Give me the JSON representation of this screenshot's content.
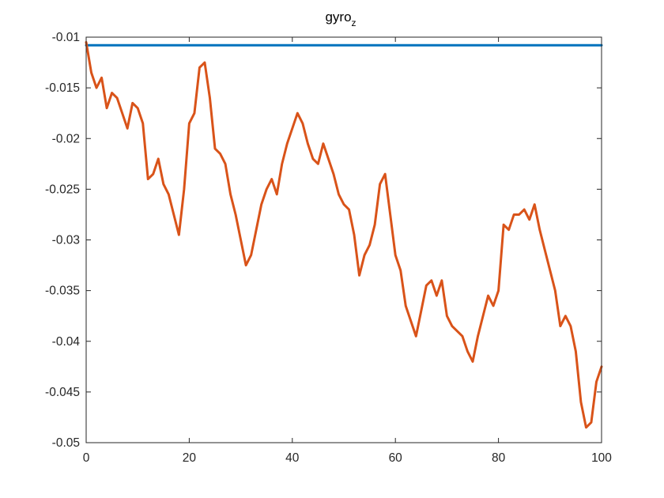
{
  "chart_data": {
    "type": "line",
    "title": "gyro",
    "title_subscript": "z",
    "xlabel": "",
    "ylabel": "",
    "xlim": [
      0,
      100
    ],
    "ylim": [
      -0.05,
      -0.01
    ],
    "xticks": [
      0,
      20,
      40,
      60,
      80,
      100
    ],
    "xtick_labels": [
      "0",
      "20",
      "40",
      "60",
      "80",
      "100"
    ],
    "yticks": [
      -0.05,
      -0.045,
      -0.04,
      -0.035,
      -0.03,
      -0.025,
      -0.02,
      -0.015,
      -0.01
    ],
    "ytick_labels": [
      "-0.05",
      "-0.045",
      "-0.04",
      "-0.035",
      "-0.03",
      "-0.025",
      "-0.02",
      "-0.015",
      "-0.01"
    ],
    "grid": false,
    "legend": "none",
    "series": [
      {
        "color": "#0072BD",
        "x": [
          0,
          100
        ],
        "y": [
          -0.0108,
          -0.0108
        ]
      },
      {
        "color": "#D95319",
        "x": [
          0,
          1,
          2,
          3,
          4,
          5,
          6,
          7,
          8,
          9,
          10,
          11,
          12,
          13,
          14,
          15,
          16,
          17,
          18,
          19,
          20,
          21,
          22,
          23,
          24,
          25,
          26,
          27,
          28,
          29,
          30,
          31,
          32,
          33,
          34,
          35,
          36,
          37,
          38,
          39,
          40,
          41,
          42,
          43,
          44,
          45,
          46,
          47,
          48,
          49,
          50,
          51,
          52,
          53,
          54,
          55,
          56,
          57,
          58,
          59,
          60,
          61,
          62,
          63,
          64,
          65,
          66,
          67,
          68,
          69,
          70,
          71,
          72,
          73,
          74,
          75,
          76,
          77,
          78,
          79,
          80,
          81,
          82,
          83,
          84,
          85,
          86,
          87,
          88,
          89,
          90,
          91,
          92,
          93,
          94,
          95,
          96,
          97,
          98,
          99,
          100
        ],
        "y": [
          -0.0105,
          -0.0135,
          -0.015,
          -0.014,
          -0.017,
          -0.0155,
          -0.016,
          -0.0175,
          -0.019,
          -0.0165,
          -0.017,
          -0.0185,
          -0.024,
          -0.0235,
          -0.022,
          -0.0245,
          -0.0255,
          -0.0275,
          -0.0295,
          -0.025,
          -0.0185,
          -0.0175,
          -0.013,
          -0.0125,
          -0.016,
          -0.021,
          -0.0215,
          -0.0225,
          -0.0255,
          -0.0275,
          -0.03,
          -0.0325,
          -0.0315,
          -0.029,
          -0.0265,
          -0.025,
          -0.024,
          -0.0255,
          -0.0225,
          -0.0205,
          -0.019,
          -0.0175,
          -0.0185,
          -0.0205,
          -0.022,
          -0.0225,
          -0.0205,
          -0.022,
          -0.0235,
          -0.0255,
          -0.0265,
          -0.027,
          -0.0295,
          -0.0335,
          -0.0315,
          -0.0305,
          -0.0285,
          -0.0245,
          -0.0235,
          -0.0275,
          -0.0315,
          -0.033,
          -0.0365,
          -0.038,
          -0.0395,
          -0.037,
          -0.0345,
          -0.034,
          -0.0355,
          -0.034,
          -0.0375,
          -0.0385,
          -0.039,
          -0.0395,
          -0.041,
          -0.042,
          -0.0395,
          -0.0375,
          -0.0355,
          -0.0365,
          -0.035,
          -0.0285,
          -0.029,
          -0.0275,
          -0.0275,
          -0.027,
          -0.028,
          -0.0265,
          -0.029,
          -0.031,
          -0.033,
          -0.035,
          -0.0385,
          -0.0375,
          -0.0385,
          -0.041,
          -0.046,
          -0.0485,
          -0.048,
          -0.044,
          -0.0425
        ]
      }
    ]
  }
}
